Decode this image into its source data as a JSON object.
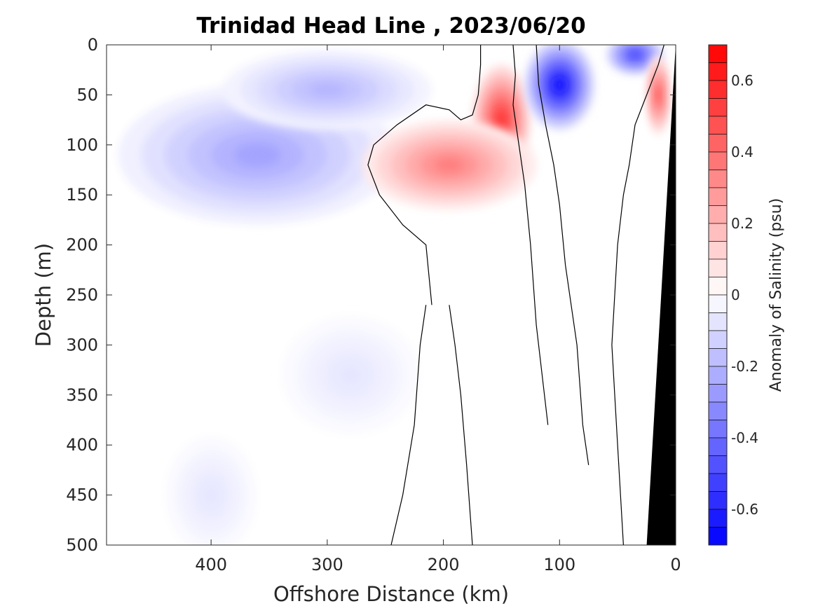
{
  "chart_data": {
    "type": "heatmap",
    "subtype": "filled-contour-section",
    "title": "Trinidad Head Line , 2023/06/20",
    "xlabel": "Offshore Distance (km)",
    "ylabel": "Depth (m)",
    "xlim": [
      490,
      0
    ],
    "ylim": [
      0,
      500
    ],
    "x_ticks": [
      "400",
      "300",
      "200",
      "100",
      "0"
    ],
    "x_tick_values": [
      400,
      300,
      200,
      100,
      0
    ],
    "y_ticks": [
      "0",
      "50",
      "100",
      "150",
      "200",
      "250",
      "300",
      "350",
      "400",
      "450",
      "500"
    ],
    "y_tick_values": [
      0,
      50,
      100,
      150,
      200,
      250,
      300,
      350,
      400,
      450,
      500
    ],
    "colorbar": {
      "label": "Anomaly of Salinity (psu)",
      "range": [
        -0.7,
        0.7
      ],
      "step": 0.05,
      "ticks": [
        "0.6",
        "0.4",
        "0.2",
        "0",
        "-0.2",
        "-0.4",
        "-0.6"
      ],
      "tick_values": [
        0.6,
        0.4,
        0.2,
        0,
        -0.2,
        -0.4,
        -0.6
      ],
      "negative_color": "#0000ff",
      "positive_color": "#ff0000",
      "neutral_color": "#ffffff"
    },
    "zero_contour_color": "#000000",
    "bathymetry_color": "#000000",
    "bathymetry": [
      [
        25,
        500
      ],
      [
        0,
        0
      ]
    ],
    "features": [
      {
        "label": "deep fresh core offshore",
        "x": 350,
        "depth": 105,
        "value": -0.45,
        "rx": 70,
        "rz": 35
      },
      {
        "label": "broad fresh layer offshore",
        "x": 360,
        "depth": 110,
        "value": -0.25,
        "rx": 120,
        "rz": 70
      },
      {
        "label": "upper fresh tongue",
        "x": 300,
        "depth": 45,
        "value": -0.2,
        "rx": 90,
        "rz": 40
      },
      {
        "label": "salty core",
        "x": 150,
        "depth": 75,
        "value": 0.55,
        "rx": 25,
        "rz": 55
      },
      {
        "label": "salty lens",
        "x": 195,
        "depth": 120,
        "value": 0.35,
        "rx": 75,
        "rz": 45
      },
      {
        "label": "fresh core nearshore",
        "x": 100,
        "depth": 40,
        "value": -0.65,
        "rx": 30,
        "rz": 45
      },
      {
        "label": "fresh surface patch nearshore",
        "x": 35,
        "depth": 10,
        "value": -0.5,
        "rx": 25,
        "rz": 20
      },
      {
        "label": "salty nearshore patch",
        "x": 15,
        "depth": 50,
        "value": 0.45,
        "rx": 10,
        "rz": 40
      },
      {
        "label": "weak fresh deep water",
        "x": 280,
        "depth": 330,
        "value": -0.07,
        "rx": 60,
        "rz": 60
      },
      {
        "label": "weak fresh deep water 2",
        "x": 400,
        "depth": 450,
        "value": -0.07,
        "rx": 40,
        "rz": 60
      }
    ]
  }
}
